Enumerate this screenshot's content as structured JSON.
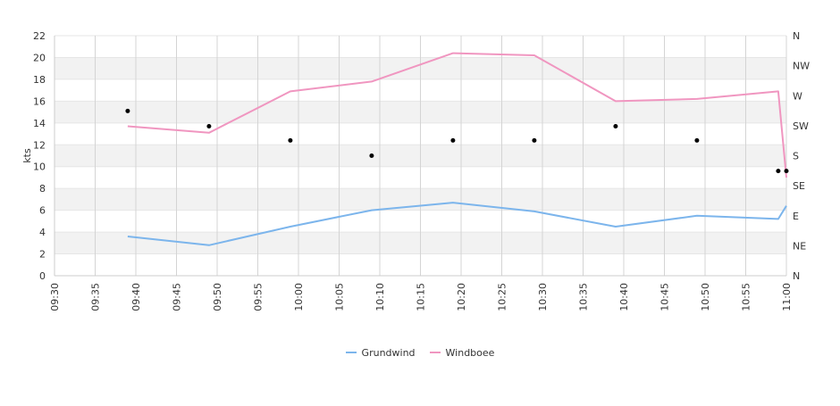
{
  "chart_data": {
    "type": "line",
    "title": "",
    "xlabel": "",
    "ylabel": "kts",
    "ylim": [
      0,
      22
    ],
    "yticks": [
      0,
      2,
      4,
      6,
      8,
      10,
      12,
      14,
      16,
      18,
      20,
      22
    ],
    "xlim": [
      "09:30",
      "11:00"
    ],
    "xticks": [
      "09:30",
      "09:35",
      "09:40",
      "09:45",
      "09:50",
      "09:55",
      "10:00",
      "10:05",
      "10:10",
      "10:15",
      "10:20",
      "10:25",
      "10:30",
      "10:35",
      "10:40",
      "10:45",
      "10:50",
      "10:55",
      "11:00"
    ],
    "direction_axis": {
      "side": "right",
      "labels": [
        "N",
        "NE",
        "E",
        "SE",
        "S",
        "SW",
        "W",
        "NW",
        "N"
      ]
    },
    "grid": true,
    "legend_position": "bottom",
    "series": [
      {
        "name": "Grundwind",
        "color": "#7cb5ec",
        "points": [
          {
            "x": "09:39",
            "y": 3.6
          },
          {
            "x": "09:49",
            "y": 2.8
          },
          {
            "x": "09:59",
            "y": 4.5
          },
          {
            "x": "10:09",
            "y": 6.0
          },
          {
            "x": "10:19",
            "y": 6.7
          },
          {
            "x": "10:29",
            "y": 5.9
          },
          {
            "x": "10:39",
            "y": 4.5
          },
          {
            "x": "10:49",
            "y": 5.5
          },
          {
            "x": "10:59",
            "y": 5.2
          },
          {
            "x": "11:00",
            "y": 6.4
          }
        ]
      },
      {
        "name": "Windboee",
        "color": "#f096c0",
        "points": [
          {
            "x": "09:39",
            "y": 13.7
          },
          {
            "x": "09:49",
            "y": 13.1
          },
          {
            "x": "09:59",
            "y": 16.9
          },
          {
            "x": "10:09",
            "y": 17.8
          },
          {
            "x": "10:19",
            "y": 20.4
          },
          {
            "x": "10:29",
            "y": 20.2
          },
          {
            "x": "10:39",
            "y": 16.0
          },
          {
            "x": "10:49",
            "y": 16.2
          },
          {
            "x": "10:59",
            "y": 16.9
          },
          {
            "x": "11:00",
            "y": 9.0
          }
        ]
      },
      {
        "name": "",
        "type": "scatter",
        "color": "#000000",
        "marker_size": 2.5,
        "points": [
          {
            "x": "09:39",
            "y": 15.1
          },
          {
            "x": "09:49",
            "y": 13.7
          },
          {
            "x": "09:59",
            "y": 12.4
          },
          {
            "x": "10:09",
            "y": 11.0
          },
          {
            "x": "10:19",
            "y": 12.4
          },
          {
            "x": "10:29",
            "y": 12.4
          },
          {
            "x": "10:39",
            "y": 13.7
          },
          {
            "x": "10:49",
            "y": 12.4
          },
          {
            "x": "10:59",
            "y": 9.6
          },
          {
            "x": "11:00",
            "y": 9.6
          }
        ]
      }
    ]
  }
}
